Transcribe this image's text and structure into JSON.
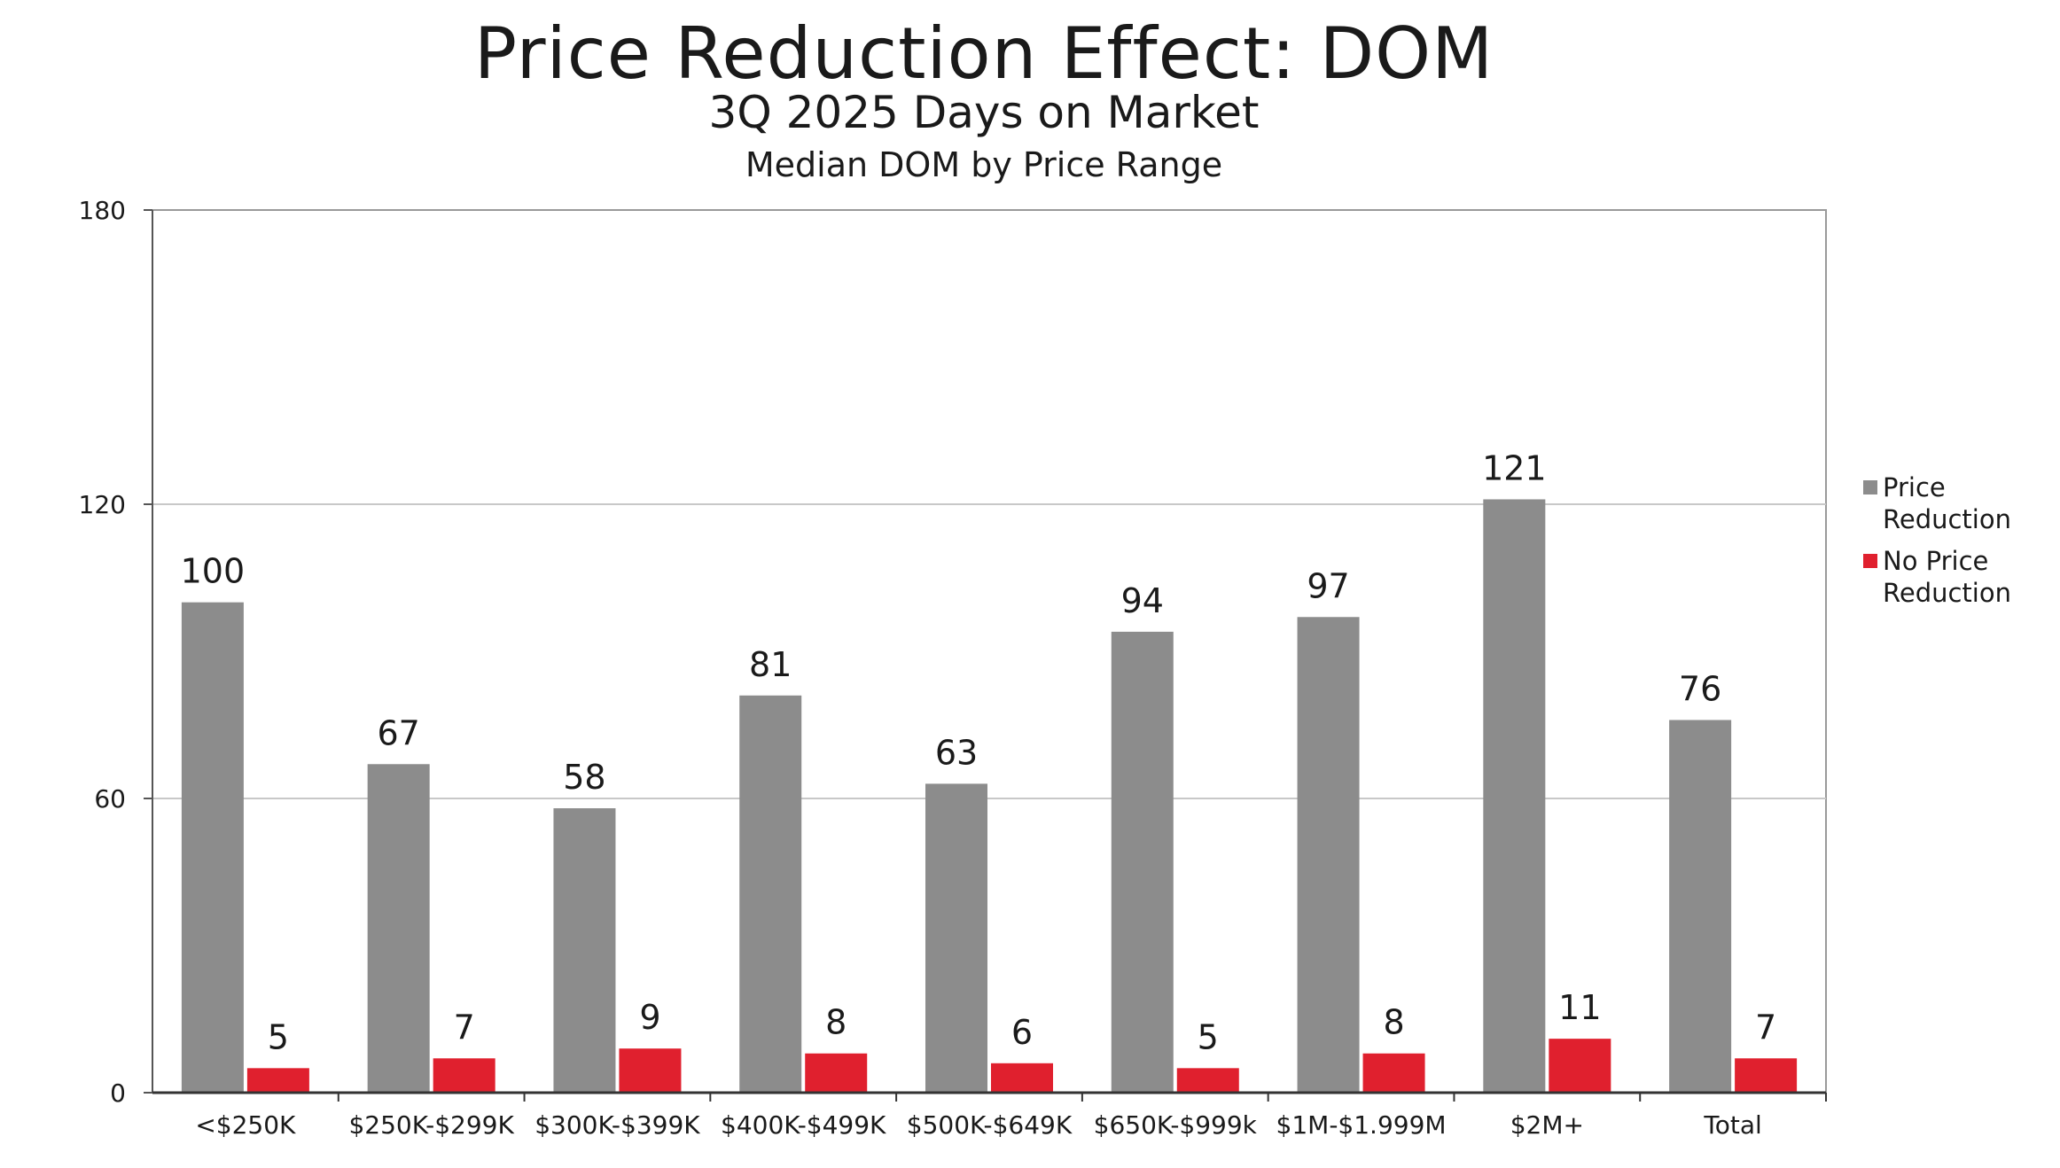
{
  "chart_data": {
    "type": "bar",
    "title": "Price Reduction Effect: DOM",
    "subtitle": "3Q 2025 Days on Market",
    "subtitle_2": "Median DOM by Price Range",
    "xlabel": "",
    "ylabel": "",
    "categories": [
      "<$250K",
      "$250K-$299K",
      "$300K-$399K",
      "$400K-$499K",
      "$500K-$649K",
      "$650K-$999k",
      "$1M-$1.999M",
      "$2M+",
      "Total"
    ],
    "series": [
      {
        "name": "Price Reduction",
        "legend_lines": [
          "Price",
          "Reduction"
        ],
        "color": "#8c8c8c",
        "values": [
          100,
          67,
          58,
          81,
          63,
          94,
          97,
          121,
          76
        ]
      },
      {
        "name": "No Price Reduction",
        "legend_lines": [
          "No Price",
          "Reduction"
        ],
        "color": "#e0202e",
        "values": [
          5,
          7,
          9,
          8,
          6,
          5,
          8,
          11,
          7
        ]
      }
    ],
    "ylim": [
      0,
      180
    ],
    "yticks": [
      0,
      60,
      120,
      180
    ],
    "grid": true,
    "legend_position": "right"
  }
}
